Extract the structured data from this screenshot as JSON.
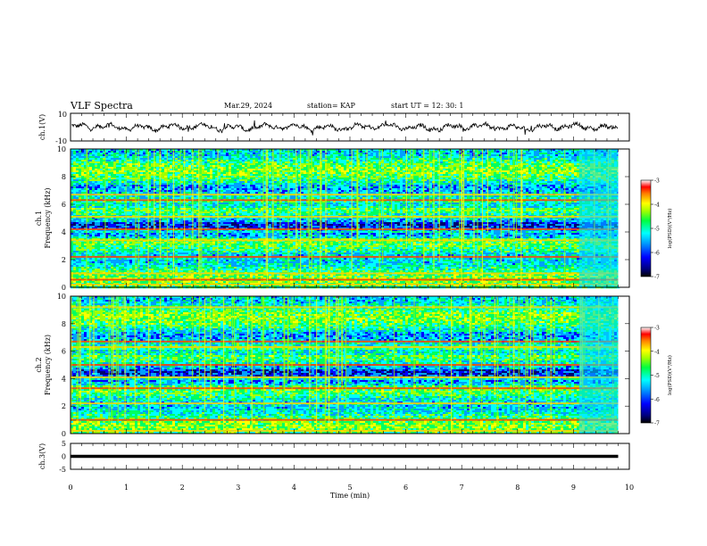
{
  "header": {
    "title": "VLF Spectra",
    "date": "Mar.29, 2024",
    "station": "station= KAP",
    "start_ut": "start  UT  =   12: 30: 1"
  },
  "chart_data": [
    {
      "type": "line",
      "name": "ch1-waveform",
      "ylabel": "ch.1(V)",
      "ylim": [
        -10,
        10
      ],
      "yticks": [
        "10",
        "-10"
      ],
      "xlim": [
        0,
        10
      ],
      "note_values": "noisy waveform oscillating roughly between -3 and 3 V over 0–9.8 min"
    },
    {
      "type": "heatmap",
      "name": "ch1-spectrogram",
      "ylabel": "ch.1\nFrequency (kHz)",
      "ylim": [
        0,
        10
      ],
      "yticks": [
        "0",
        "2",
        "4",
        "6",
        "8",
        "10"
      ],
      "xlim": [
        0,
        10
      ],
      "colorbar": {
        "label": "log(PSD)(V²/Hz)",
        "range": [
          -7,
          -3
        ],
        "ticks": [
          "-3",
          "-4",
          "-5",
          "-6",
          "-7"
        ]
      },
      "bands_khz": [
        0.2,
        0.55,
        1.0,
        2.2,
        3.4,
        4.2,
        5.1,
        6.3,
        6.7
      ],
      "data_end_min": 9.8
    },
    {
      "type": "heatmap",
      "name": "ch2-spectrogram",
      "ylabel": "ch.2\nFrequency (kHz)",
      "ylim": [
        0,
        10
      ],
      "yticks": [
        "0",
        "2",
        "4",
        "6",
        "8",
        "10"
      ],
      "xlim": [
        0,
        10
      ],
      "colorbar": {
        "label": "log(PSD)(V²/Hz)",
        "range": [
          -7,
          -3
        ],
        "ticks": [
          "-3",
          "-4",
          "-5",
          "-6",
          "-7"
        ]
      },
      "bands_khz": [
        0.2,
        1.0,
        2.2,
        3.3,
        4.1,
        5.0,
        6.3,
        6.7,
        9.2
      ],
      "data_end_min": 9.8
    },
    {
      "type": "line",
      "name": "ch3-signal",
      "ylabel": "ch.3(V)",
      "ylim": [
        -5,
        5
      ],
      "yticks": [
        "5",
        "0",
        "-5"
      ],
      "xlim": [
        0,
        10
      ],
      "note_values": "flat band near 0 V from 0 to 9.8 min"
    }
  ],
  "time_axis": {
    "label": "Time  (min)",
    "ticks": [
      "0",
      "1",
      "2",
      "3",
      "4",
      "5",
      "6",
      "7",
      "8",
      "9",
      "10"
    ]
  },
  "colors": {
    "ink": "#000000",
    "colormap": [
      "#000070",
      "#0000ff",
      "#00a0ff",
      "#00ffff",
      "#00ff60",
      "#a0ff00",
      "#ffff00",
      "#ff8000",
      "#ff0000",
      "#ffffff"
    ]
  }
}
